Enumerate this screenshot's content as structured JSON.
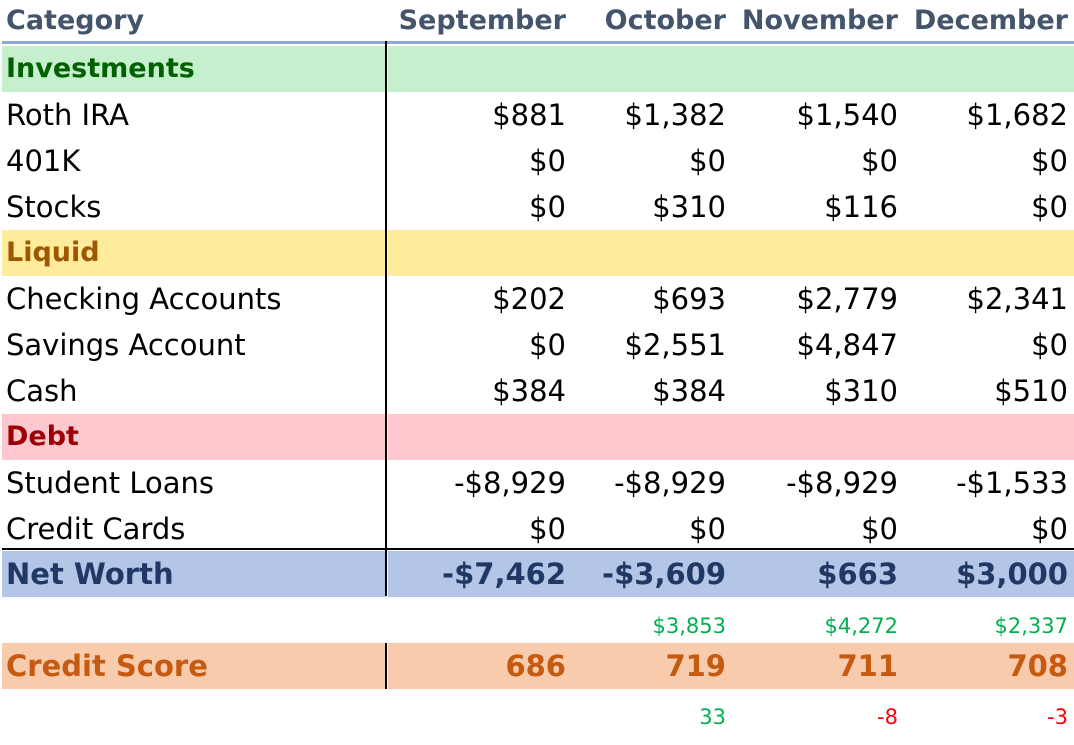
{
  "header": {
    "category_label": "Category",
    "months": [
      "September",
      "October",
      "November",
      "December"
    ]
  },
  "sections": {
    "investments": {
      "label": "Investments",
      "rows": [
        {
          "name": "Roth IRA",
          "values": [
            "$881",
            "$1,382",
            "$1,540",
            "$1,682"
          ]
        },
        {
          "name": "401K",
          "values": [
            "$0",
            "$0",
            "$0",
            "$0"
          ]
        },
        {
          "name": "Stocks",
          "values": [
            "$0",
            "$310",
            "$116",
            "$0"
          ]
        }
      ]
    },
    "liquid": {
      "label": "Liquid",
      "rows": [
        {
          "name": "Checking Accounts",
          "values": [
            "$202",
            "$693",
            "$2,779",
            "$2,341"
          ]
        },
        {
          "name": "Savings Account",
          "values": [
            "$0",
            "$2,551",
            "$4,847",
            "$0"
          ]
        },
        {
          "name": "Cash",
          "values": [
            "$384",
            "$384",
            "$310",
            "$510"
          ]
        }
      ]
    },
    "debt": {
      "label": "Debt",
      "rows": [
        {
          "name": "Student Loans",
          "values": [
            "-$8,929",
            "-$8,929",
            "-$8,929",
            "-$1,533"
          ]
        },
        {
          "name": "Credit Cards",
          "values": [
            "$0",
            "$0",
            "$0",
            "$0"
          ]
        }
      ]
    }
  },
  "net_worth": {
    "label": "Net Worth",
    "values": [
      "-$7,462",
      "-$3,609",
      "$663",
      "$3,000"
    ],
    "changes": [
      "",
      "$3,853",
      "$4,272",
      "$2,337"
    ]
  },
  "credit_score": {
    "label": "Credit Score",
    "values": [
      "686",
      "719",
      "711",
      "708"
    ],
    "changes": [
      "",
      "33",
      "-8",
      "-3"
    ]
  },
  "colors": {
    "header_text": "#44546a",
    "header_rule": "#8ea9db",
    "investments_fill": "#c6efce",
    "investments_text": "#006100",
    "liquid_fill": "#ffeb9c",
    "liquid_text": "#9c5700",
    "debt_fill": "#ffc7ce",
    "debt_text": "#9c0006",
    "net_worth_fill": "#b4c6e7",
    "net_worth_text": "#1f3864",
    "credit_fill": "#f8cbad",
    "credit_text": "#c55a11",
    "positive_change": "#00b050",
    "negative_change": "#ff0000"
  }
}
